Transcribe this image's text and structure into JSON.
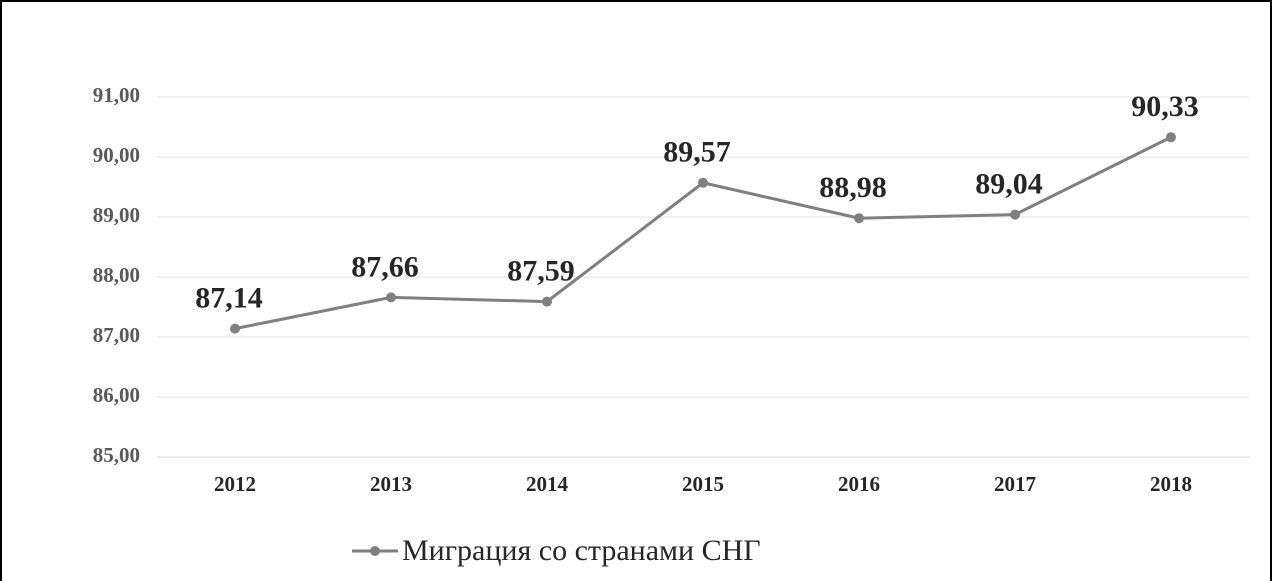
{
  "chart_data": {
    "type": "line",
    "categories": [
      "2012",
      "2013",
      "2014",
      "2015",
      "2016",
      "2017",
      "2018"
    ],
    "series": [
      {
        "name": "Миграция со странами СНГ",
        "color": "#7f7f7f",
        "values": [
          87.14,
          87.66,
          87.59,
          89.57,
          88.98,
          89.04,
          90.33
        ],
        "value_labels": [
          "87,14",
          "87,66",
          "87,59",
          "89,57",
          "88,98",
          "89,04",
          "90,33"
        ]
      }
    ],
    "ylim": [
      85,
      91
    ],
    "yticks": [
      {
        "value": 85,
        "label": "85,00"
      },
      {
        "value": 86,
        "label": "86,00"
      },
      {
        "value": 87,
        "label": "87,00"
      },
      {
        "value": 88,
        "label": "88,00"
      },
      {
        "value": 89,
        "label": "89,00"
      },
      {
        "value": 90,
        "label": "90,00"
      },
      {
        "value": 91,
        "label": "91,00"
      }
    ],
    "grid": true,
    "legend": "bottom"
  }
}
